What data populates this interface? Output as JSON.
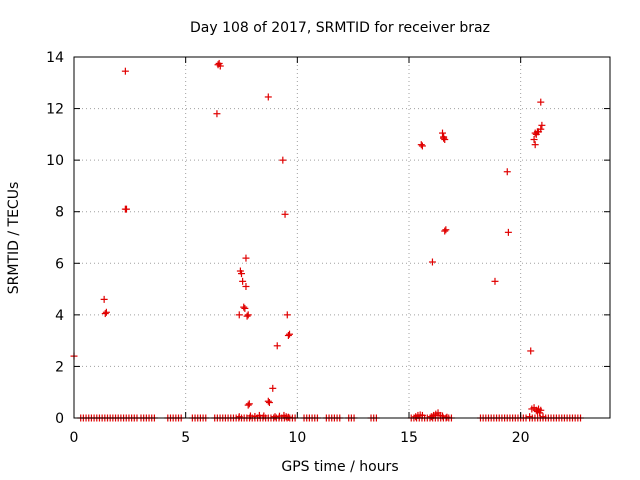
{
  "chart_data": {
    "type": "scatter",
    "title": "Day 108 of 2017, SRMTID for receiver braz",
    "xlabel": "GPS time / hours",
    "ylabel": "SRMTID / TECUs",
    "xlim": [
      0,
      24
    ],
    "ylim": [
      0,
      14
    ],
    "xticks": [
      0,
      5,
      10,
      15,
      20
    ],
    "yticks": [
      0,
      2,
      4,
      6,
      8,
      10,
      12,
      14
    ],
    "grid": true,
    "legend": "none",
    "color": "#e00000",
    "series": [
      {
        "points": [
          [
            0.0,
            2.4
          ],
          [
            1.35,
            4.6
          ],
          [
            1.4,
            4.05
          ],
          [
            1.45,
            4.1
          ],
          [
            2.3,
            13.45
          ],
          [
            2.3,
            8.1
          ],
          [
            2.35,
            8.1
          ],
          [
            6.4,
            11.8
          ],
          [
            6.45,
            13.7
          ],
          [
            6.5,
            13.75
          ],
          [
            6.55,
            13.65
          ],
          [
            7.4,
            4.0
          ],
          [
            7.45,
            5.7
          ],
          [
            7.5,
            5.6
          ],
          [
            7.55,
            5.3
          ],
          [
            7.6,
            4.3
          ],
          [
            7.65,
            4.25
          ],
          [
            7.7,
            5.1
          ],
          [
            7.7,
            6.2
          ],
          [
            7.75,
            3.95
          ],
          [
            7.8,
            0.5
          ],
          [
            7.85,
            0.55
          ],
          [
            7.8,
            4.0
          ],
          [
            8.7,
            12.45
          ],
          [
            8.7,
            0.65
          ],
          [
            8.75,
            0.6
          ],
          [
            8.9,
            1.15
          ],
          [
            9.1,
            2.8
          ],
          [
            9.35,
            10.0
          ],
          [
            9.45,
            7.9
          ],
          [
            9.55,
            4.0
          ],
          [
            9.6,
            3.2
          ],
          [
            9.65,
            3.25
          ],
          [
            15.55,
            10.6
          ],
          [
            15.6,
            10.55
          ],
          [
            16.05,
            6.05
          ],
          [
            16.5,
            11.05
          ],
          [
            16.55,
            10.9
          ],
          [
            16.6,
            10.8
          ],
          [
            16.55,
            10.85
          ],
          [
            16.6,
            7.25
          ],
          [
            16.65,
            7.3
          ],
          [
            18.85,
            5.3
          ],
          [
            19.4,
            9.55
          ],
          [
            19.45,
            7.2
          ],
          [
            20.45,
            2.6
          ],
          [
            20.6,
            10.8
          ],
          [
            20.65,
            10.6
          ],
          [
            20.7,
            11.0
          ],
          [
            20.75,
            11.1
          ],
          [
            20.65,
            11.05
          ],
          [
            20.8,
            11.1
          ],
          [
            20.9,
            11.2
          ],
          [
            20.95,
            11.35
          ],
          [
            20.9,
            12.25
          ],
          [
            20.5,
            0.35
          ],
          [
            20.6,
            0.4
          ],
          [
            20.7,
            0.3
          ],
          [
            20.75,
            0.25
          ],
          [
            20.8,
            0.35
          ],
          [
            20.85,
            0.2
          ],
          [
            20.9,
            0.3
          ],
          [
            15.3,
            0.05
          ],
          [
            15.4,
            0.1
          ],
          [
            15.5,
            0.12
          ],
          [
            15.6,
            0.1
          ],
          [
            16.1,
            0.1
          ],
          [
            16.2,
            0.15
          ],
          [
            16.3,
            0.2
          ],
          [
            16.4,
            0.1
          ],
          [
            16.5,
            0.08
          ],
          [
            7.4,
            0.05
          ],
          [
            7.9,
            0.08
          ],
          [
            8.1,
            0.06
          ],
          [
            8.3,
            0.1
          ],
          [
            8.5,
            0.08
          ],
          [
            9.0,
            0.05
          ],
          [
            9.2,
            0.07
          ],
          [
            9.4,
            0.1
          ],
          [
            9.5,
            0.05
          ],
          [
            9.6,
            0.03
          ],
          [
            16.0,
            0.05
          ],
          [
            16.7,
            0.03
          ],
          [
            20.4,
            0.05
          ],
          [
            21.0,
            0.05
          ]
        ]
      }
    ],
    "baseline_ranges": [
      [
        0.3,
        2.9
      ],
      [
        3.0,
        3.6
      ],
      [
        4.2,
        4.9
      ],
      [
        5.3,
        6.0
      ],
      [
        6.3,
        9.9
      ],
      [
        10.3,
        11.0
      ],
      [
        11.3,
        12.0
      ],
      [
        12.3,
        12.6
      ],
      [
        13.3,
        13.6
      ],
      [
        15.1,
        16.9
      ],
      [
        18.2,
        20.3
      ],
      [
        20.4,
        22.7
      ]
    ]
  }
}
